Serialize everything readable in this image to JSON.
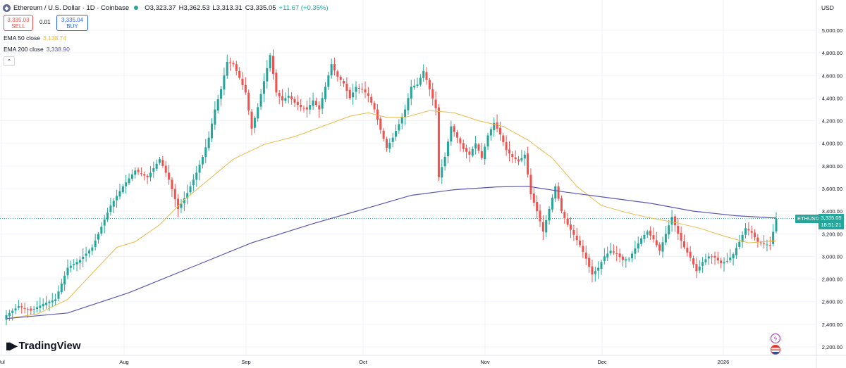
{
  "header": {
    "symbol": "Ethereum / U.S. Dollar · 1D · Coinbase",
    "open": "O3,323.37",
    "high": "H3,362.53",
    "low": "L3,313.31",
    "close": "C3,335.05",
    "change": "+11.67 (+0.35%)"
  },
  "trade": {
    "sell_price": "3,335.03",
    "sell_label": "SELL",
    "spread": "0.01",
    "buy_price": "3,335.04",
    "buy_label": "BUY"
  },
  "indicators": {
    "ema50_label": "EMA 50 close",
    "ema50_value": "3,138.74",
    "ema200_label": "EMA 200 close",
    "ema200_value": "3,338.90"
  },
  "currency": "USD",
  "price_tag": {
    "symbol": "ETHUSD",
    "price": "3,335.05",
    "countdown": "18:51:21"
  },
  "brand": "TradingView",
  "colors": {
    "up": "#26a69a",
    "down": "#ef5350",
    "ema50": "#e9b949",
    "ema200": "#5b55b3"
  },
  "chart_data": {
    "type": "candlestick",
    "x_ticks": [
      "Jul",
      "Aug",
      "Sep",
      "Oct",
      "Nov",
      "Dec",
      "2026"
    ],
    "y_ticks": [
      "2,200.00",
      "2,400.00",
      "2,600.00",
      "2,800.00",
      "3,000.00",
      "3,200.00",
      "3,400.00",
      "3,600.00",
      "3,800.00",
      "4,000.00",
      "4,200.00",
      "4,400.00",
      "4,600.00",
      "4,800.00",
      "5,000.00"
    ],
    "ylim": [
      2150,
      5100
    ],
    "current_price": 3335.05,
    "close_path": [
      [
        0,
        2480
      ],
      [
        4,
        2560
      ],
      [
        8,
        2520
      ],
      [
        12,
        2580
      ],
      [
        16,
        2620
      ],
      [
        20,
        2900
      ],
      [
        24,
        2970
      ],
      [
        28,
        3080
      ],
      [
        30,
        3200
      ],
      [
        34,
        3450
      ],
      [
        38,
        3620
      ],
      [
        42,
        3760
      ],
      [
        46,
        3700
      ],
      [
        50,
        3860
      ],
      [
        53,
        3680
      ],
      [
        56,
        3420
      ],
      [
        59,
        3560
      ],
      [
        62,
        3740
      ],
      [
        64,
        3880
      ],
      [
        66,
        4050
      ],
      [
        68,
        4300
      ],
      [
        70,
        4480
      ],
      [
        72,
        4720
      ],
      [
        74,
        4700
      ],
      [
        76,
        4580
      ],
      [
        78,
        4450
      ],
      [
        80,
        4130
      ],
      [
        82,
        4320
      ],
      [
        84,
        4550
      ],
      [
        86,
        4780
      ],
      [
        88,
        4450
      ],
      [
        90,
        4380
      ],
      [
        92,
        4420
      ],
      [
        94,
        4360
      ],
      [
        96,
        4320
      ],
      [
        98,
        4300
      ],
      [
        100,
        4380
      ],
      [
        102,
        4300
      ],
      [
        104,
        4500
      ],
      [
        106,
        4700
      ],
      [
        108,
        4590
      ],
      [
        110,
        4530
      ],
      [
        112,
        4400
      ],
      [
        114,
        4500
      ],
      [
        116,
        4480
      ],
      [
        118,
        4420
      ],
      [
        120,
        4300
      ],
      [
        122,
        4120
      ],
      [
        124,
        3960
      ],
      [
        126,
        4050
      ],
      [
        128,
        4170
      ],
      [
        130,
        4300
      ],
      [
        132,
        4500
      ],
      [
        134,
        4520
      ],
      [
        136,
        4640
      ],
      [
        138,
        4480
      ],
      [
        140,
        4310
      ],
      [
        141,
        3700
      ],
      [
        143,
        3880
      ],
      [
        145,
        4150
      ],
      [
        147,
        4050
      ],
      [
        149,
        3950
      ],
      [
        151,
        3900
      ],
      [
        153,
        4000
      ],
      [
        155,
        3870
      ],
      [
        157,
        4070
      ],
      [
        159,
        4180
      ],
      [
        161,
        4080
      ],
      [
        163,
        3940
      ],
      [
        165,
        3880
      ],
      [
        167,
        3840
      ],
      [
        169,
        3900
      ],
      [
        171,
        3550
      ],
      [
        173,
        3400
      ],
      [
        175,
        3220
      ],
      [
        177,
        3420
      ],
      [
        179,
        3620
      ],
      [
        181,
        3400
      ],
      [
        183,
        3280
      ],
      [
        185,
        3190
      ],
      [
        187,
        3100
      ],
      [
        189,
        2980
      ],
      [
        191,
        2840
      ],
      [
        193,
        2900
      ],
      [
        195,
        3000
      ],
      [
        197,
        3050
      ],
      [
        199,
        3020
      ],
      [
        201,
        2970
      ],
      [
        203,
        2980
      ],
      [
        205,
        3070
      ],
      [
        207,
        3160
      ],
      [
        209,
        3220
      ],
      [
        211,
        3150
      ],
      [
        213,
        3050
      ],
      [
        215,
        3200
      ],
      [
        217,
        3350
      ],
      [
        219,
        3200
      ],
      [
        221,
        3080
      ],
      [
        223,
        2990
      ],
      [
        225,
        2870
      ],
      [
        227,
        2950
      ],
      [
        229,
        3000
      ],
      [
        231,
        2990
      ],
      [
        233,
        2940
      ],
      [
        235,
        2960
      ],
      [
        237,
        3020
      ],
      [
        239,
        3130
      ],
      [
        241,
        3250
      ],
      [
        243,
        3210
      ],
      [
        245,
        3130
      ],
      [
        247,
        3110
      ],
      [
        249,
        3100
      ],
      [
        251,
        3335
      ]
    ],
    "ema50_path": [
      [
        0,
        2450
      ],
      [
        10,
        2490
      ],
      [
        20,
        2620
      ],
      [
        28,
        2850
      ],
      [
        36,
        3080
      ],
      [
        42,
        3130
      ],
      [
        50,
        3280
      ],
      [
        58,
        3500
      ],
      [
        66,
        3680
      ],
      [
        74,
        3860
      ],
      [
        84,
        3990
      ],
      [
        94,
        4060
      ],
      [
        104,
        4160
      ],
      [
        112,
        4240
      ],
      [
        118,
        4270
      ],
      [
        124,
        4230
      ],
      [
        130,
        4230
      ],
      [
        138,
        4290
      ],
      [
        146,
        4270
      ],
      [
        154,
        4200
      ],
      [
        162,
        4150
      ],
      [
        170,
        4030
      ],
      [
        178,
        3870
      ],
      [
        186,
        3620
      ],
      [
        194,
        3450
      ],
      [
        202,
        3390
      ],
      [
        210,
        3340
      ],
      [
        218,
        3300
      ],
      [
        226,
        3250
      ],
      [
        234,
        3180
      ],
      [
        242,
        3120
      ],
      [
        251,
        3139
      ]
    ],
    "ema200_path": [
      [
        0,
        2450
      ],
      [
        20,
        2500
      ],
      [
        40,
        2680
      ],
      [
        60,
        2900
      ],
      [
        80,
        3120
      ],
      [
        100,
        3290
      ],
      [
        118,
        3430
      ],
      [
        132,
        3540
      ],
      [
        146,
        3590
      ],
      [
        160,
        3615
      ],
      [
        170,
        3620
      ],
      [
        182,
        3570
      ],
      [
        196,
        3520
      ],
      [
        210,
        3470
      ],
      [
        224,
        3400
      ],
      [
        238,
        3360
      ],
      [
        251,
        3339
      ]
    ],
    "ohlc_note": "Daily OHLC candles approximated from the screenshot"
  }
}
